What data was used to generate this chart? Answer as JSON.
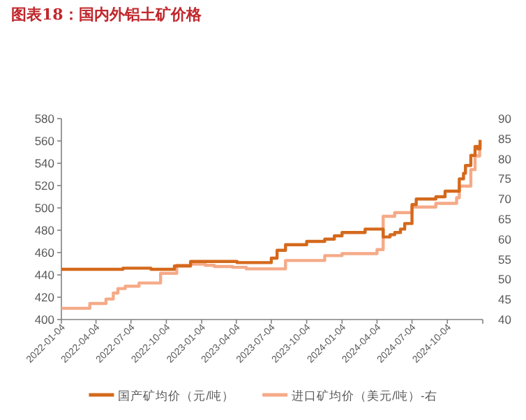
{
  "chart_data": {
    "type": "step",
    "title": "图表18：国内外铝土矿价格",
    "xlim": [
      "2022-01-04",
      "2025-01-04"
    ],
    "xticks": [
      "2022-01-04",
      "2022-04-04",
      "2022-07-04",
      "2022-10-04",
      "2023-01-04",
      "2023-04-04",
      "2023-07-04",
      "2023-10-04",
      "2024-01-04",
      "2024-04-04",
      "2024-07-04",
      "2024-10-04",
      {
        "value": "2025-01-04",
        "label": null
      }
    ],
    "ylim": [
      400,
      580
    ],
    "yticks": [
      400,
      420,
      440,
      460,
      480,
      500,
      520,
      540,
      560,
      580
    ],
    "y2lim": [
      40,
      90
    ],
    "y2ticks": [
      40,
      45,
      50,
      55,
      60,
      65,
      70,
      75,
      80,
      85,
      90
    ],
    "legend": "bottom",
    "series": [
      {
        "name": "国产矿均价（元/吨）",
        "color": "#d4691c",
        "x": [
          "2022-01-04",
          "2022-06-13",
          "2022-08-25",
          "2022-10-25",
          "2022-12-06",
          "2023-04-06",
          "2023-07-04",
          "2023-07-19",
          "2023-08-10",
          "2023-10-04",
          "2023-11-20",
          "2023-12-15",
          "2024-01-04",
          "2024-03-04",
          "2024-04-20",
          "2024-05-08",
          "2024-05-20",
          "2024-06-04",
          "2024-06-15",
          "2024-07-04",
          "2024-07-15",
          "2024-09-04",
          "2024-09-28",
          "2024-11-04",
          "2024-11-15",
          "2024-11-20",
          "2024-12-04",
          "2024-12-15",
          "2024-12-22",
          "2024-12-28"
        ],
        "values": [
          445,
          446,
          445,
          448,
          452,
          451,
          455,
          462,
          467,
          470,
          472,
          475,
          478,
          481,
          474,
          476,
          478,
          481,
          486,
          503,
          508,
          510,
          515,
          526,
          531,
          538,
          547,
          555,
          553,
          561
        ]
      },
      {
        "name": "进口矿均价（美元/吨）-右",
        "color": "#f5aa88",
        "axis": "y2",
        "x": [
          "2022-01-04",
          "2022-03-19",
          "2022-04-30",
          "2022-05-19",
          "2022-05-31",
          "2022-06-19",
          "2022-07-25",
          "2022-09-19",
          "2022-10-31",
          "2022-12-06",
          "2023-01-13",
          "2023-02-06",
          "2023-03-25",
          "2023-04-30",
          "2023-08-10",
          "2023-11-20",
          "2024-01-04",
          "2024-04-04",
          "2024-04-20",
          "2024-05-20",
          "2024-07-04",
          "2024-09-04",
          "2024-10-28",
          "2024-11-04",
          "2024-12-04",
          "2024-12-15",
          "2024-12-27"
        ],
        "values": [
          42.8,
          44.0,
          45.1,
          46.6,
          47.7,
          48.3,
          49.1,
          51.5,
          53.5,
          53.8,
          53.5,
          53.2,
          53.0,
          52.6,
          54.7,
          55.9,
          56.4,
          57.4,
          65.7,
          66.6,
          68.0,
          68.9,
          70.3,
          73.2,
          77.3,
          80.7,
          83.6
        ]
      }
    ]
  }
}
